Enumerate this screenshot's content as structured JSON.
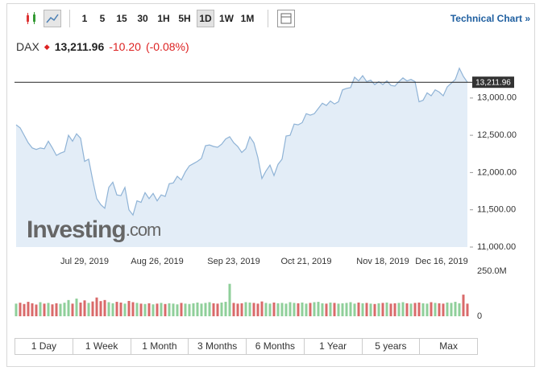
{
  "toolbar": {
    "intervals": [
      "1",
      "5",
      "15",
      "30",
      "1H",
      "5H",
      "1D",
      "1W",
      "1M"
    ],
    "active": "1D",
    "link": "Technical Chart »"
  },
  "quote": {
    "symbol": "DAX",
    "price": "13,211.96",
    "change": "-10.20",
    "change_pct": "(-0.08%)"
  },
  "watermark": {
    "brand": "Investing",
    "suffix": ".com"
  },
  "ranges": [
    "1 Day",
    "1 Week",
    "1 Month",
    "3 Months",
    "6 Months",
    "1 Year",
    "5 years",
    "Max"
  ],
  "chart_data": [
    {
      "type": "area",
      "categories": [
        null,
        null,
        null,
        null,
        null,
        null,
        null,
        null,
        null,
        null,
        null,
        null,
        null,
        null,
        null,
        null,
        null,
        "Jul 29, 2019",
        null,
        null,
        null,
        null,
        null,
        null,
        null,
        null,
        null,
        null,
        null,
        null,
        null,
        null,
        null,
        null,
        null,
        "Aug 26, 2019",
        null,
        null,
        null,
        null,
        null,
        null,
        null,
        null,
        null,
        null,
        null,
        null,
        null,
        null,
        null,
        null,
        null,
        null,
        "Sep 23, 2019",
        null,
        null,
        null,
        null,
        null,
        null,
        null,
        null,
        null,
        null,
        null,
        null,
        null,
        null,
        null,
        null,
        null,
        "Oct 21, 2019",
        null,
        null,
        null,
        null,
        null,
        null,
        null,
        null,
        null,
        null,
        null,
        null,
        null,
        null,
        null,
        null,
        null,
        null,
        "Nov 18, 2019",
        null,
        null,
        null,
        null,
        null,
        null,
        null,
        null,
        null,
        null,
        null,
        null,
        null,
        null,
        "Dec 16, 2019",
        null,
        null,
        null,
        null,
        null,
        null
      ],
      "series": [
        {
          "name": "DAX",
          "color": "#8fb3d6",
          "fill": "#e3edf7",
          "values": [
            12640,
            12600,
            12500,
            12400,
            12330,
            12310,
            12330,
            12320,
            12420,
            12330,
            12230,
            12260,
            12280,
            12500,
            12420,
            12520,
            12460,
            12150,
            12180,
            11900,
            11650,
            11570,
            11520,
            11800,
            11870,
            11700,
            11690,
            11800,
            11500,
            11430,
            11620,
            11600,
            11730,
            11650,
            11720,
            11620,
            11700,
            11680,
            11850,
            11860,
            11950,
            11900,
            12010,
            12090,
            12120,
            12150,
            12190,
            12360,
            12370,
            12350,
            12340,
            12380,
            12450,
            12480,
            12400,
            12350,
            12270,
            12320,
            12480,
            12400,
            12200,
            11920,
            12020,
            12100,
            11960,
            12110,
            12180,
            12490,
            12500,
            12650,
            12640,
            12670,
            12790,
            12770,
            12790,
            12860,
            12930,
            12900,
            12960,
            12920,
            12950,
            13110,
            13130,
            13140,
            13280,
            13230,
            13300,
            13220,
            13240,
            13180,
            13220,
            13180,
            13230,
            13170,
            13160,
            13220,
            13270,
            13230,
            13250,
            13220,
            12950,
            12970,
            13070,
            13030,
            13110,
            13080,
            13030,
            13150,
            13200,
            13250,
            13400,
            13290,
            13212
          ]
        }
      ],
      "ylim": [
        11000,
        13430
      ],
      "yticks": [
        {
          "value": 11000,
          "label": "11,000.00"
        },
        {
          "value": 11500,
          "label": "11,500.00"
        },
        {
          "value": 12000,
          "label": "12,000.00"
        },
        {
          "value": 12500,
          "label": "12,500.00"
        },
        {
          "value": 13000,
          "label": "13,000.00"
        }
      ],
      "price_line": {
        "value": 13211.96,
        "label": "13,211.96"
      }
    },
    {
      "type": "bar",
      "up_color": "#8fcf9a",
      "down_color": "#d96a6a",
      "values": [
        70,
        75,
        68,
        80,
        72,
        65,
        78,
        70,
        74,
        66,
        72,
        69,
        75,
        90,
        70,
        98,
        76,
        88,
        74,
        82,
        104,
        84,
        90,
        78,
        72,
        80,
        76,
        70,
        85,
        78,
        74,
        70,
        68,
        72,
        66,
        70,
        74,
        68,
        72,
        70,
        66,
        74,
        70,
        68,
        72,
        76,
        70,
        74,
        78,
        72,
        70,
        76,
        80,
        180,
        74,
        70,
        72,
        78,
        76,
        74,
        70,
        82,
        74,
        70,
        76,
        72,
        74,
        70,
        78,
        74,
        72,
        76,
        70,
        74,
        78,
        80,
        72,
        70,
        76,
        74,
        70,
        72,
        74,
        78,
        70,
        76,
        72,
        74,
        70,
        68,
        72,
        74,
        76,
        70,
        72,
        74,
        78,
        72,
        70,
        74,
        76,
        72,
        70,
        78,
        74,
        72,
        70,
        76,
        74,
        80,
        72,
        120,
        70
      ],
      "ylim": [
        0,
        250
      ],
      "yticks": [
        0,
        {
          "value": 250,
          "label": "250.0M"
        }
      ]
    }
  ]
}
